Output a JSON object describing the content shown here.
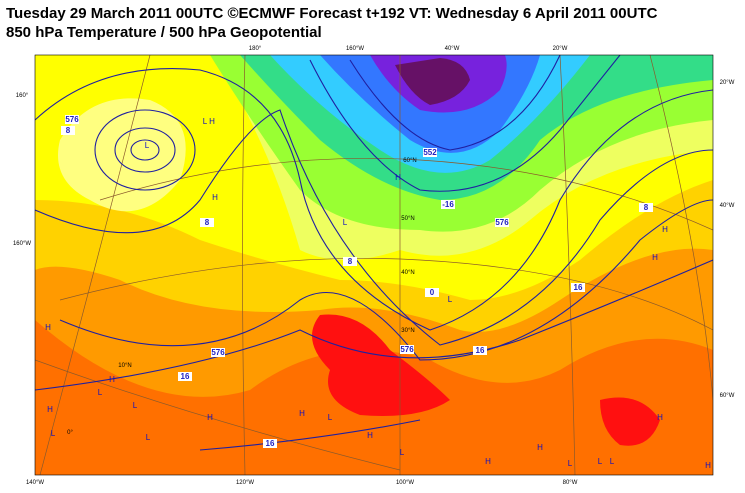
{
  "header": {
    "title": "Tuesday 29 March 2011 00UTC ©ECMWF Forecast t+192 VT: Wednesday 6 April 2011 00UTC",
    "subtitle": "850 hPa Temperature / 500 hPa Geopotential"
  },
  "grid_labels": [
    "180°",
    "160°W",
    "40°W",
    "20°W",
    "160°",
    "160°W",
    "20°W",
    "40°W",
    "60°W",
    "140°W",
    "120°W",
    "100°W",
    "80°W",
    "60°N",
    "50°N",
    "40°N",
    "30°N",
    "10°N",
    "0°"
  ],
  "contour_labels": [
    "8",
    "576",
    "8",
    "16",
    "16",
    "16",
    "16",
    "8",
    "0",
    "8",
    "-16",
    "576",
    "576",
    "552",
    "576"
  ],
  "pressure_centers": [
    "L",
    "L",
    "H",
    "H",
    "L",
    "H",
    "L",
    "H",
    "H",
    "H",
    "L",
    "H",
    "H",
    "L",
    "H",
    "H",
    "L",
    "L",
    "L",
    "H",
    "L",
    "H",
    "H",
    "L",
    "H",
    "L",
    "L",
    "H"
  ]
}
